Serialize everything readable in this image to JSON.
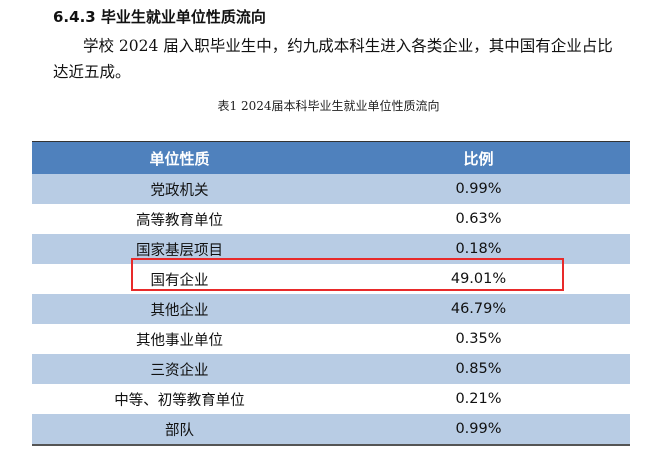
{
  "heading": "6.4.3 毕业生就业单位性质流向",
  "paragraph": "学校 2024 届入职毕业生中，约九成本科生进入各类企业，其中国有企业占比达近五成。",
  "caption": "表1 2024届本科毕业生就业单位性质流向",
  "table": {
    "headers": [
      "单位性质",
      "比例"
    ],
    "rows": [
      {
        "type": "党政机关",
        "ratio": "0.99%"
      },
      {
        "type": "高等教育单位",
        "ratio": "0.63%"
      },
      {
        "type": "国家基层项目",
        "ratio": "0.18%"
      },
      {
        "type": "国有企业",
        "ratio": "49.01%"
      },
      {
        "type": "其他企业",
        "ratio": "46.79%"
      },
      {
        "type": "其他事业单位",
        "ratio": "0.35%"
      },
      {
        "type": "三资企业",
        "ratio": "0.85%"
      },
      {
        "type": "中等、初等教育单位",
        "ratio": "0.21%"
      },
      {
        "type": "部队",
        "ratio": "0.99%"
      }
    ],
    "highlighted_row": "国有企业"
  },
  "colors": {
    "header": "#4f81bd",
    "stripe": "#b8cce4",
    "highlight": "#e82a2a"
  }
}
